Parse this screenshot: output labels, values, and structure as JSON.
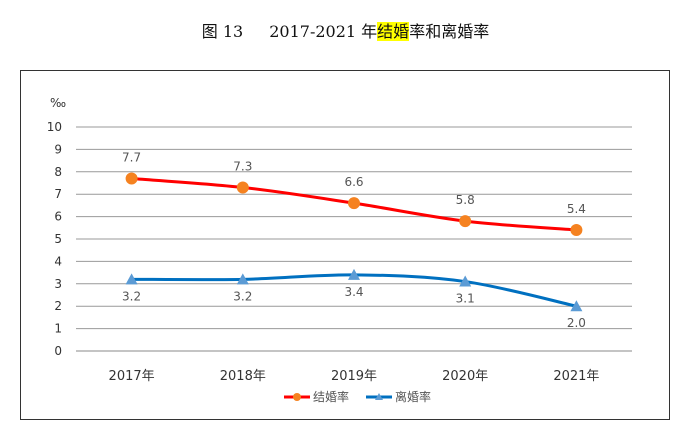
{
  "title": {
    "fig": "图 13",
    "years": "2017-2021 年",
    "highlight": "结婚",
    "rest": "率和离婚率"
  },
  "chart_data": {
    "type": "line",
    "title": "2017-2021 年结婚率和离婚率",
    "ylabel": "‰",
    "categories": [
      "2017年",
      "2018年",
      "2019年",
      "2020年",
      "2021年"
    ],
    "ylim": [
      0,
      10
    ],
    "yticks": [
      0,
      1,
      2,
      3,
      4,
      5,
      6,
      7,
      8,
      9,
      10
    ],
    "grid": true,
    "legend": "bottom",
    "series": [
      {
        "name": "结婚率",
        "values": [
          7.7,
          7.3,
          6.6,
          5.8,
          5.4
        ],
        "labels": [
          "7.7",
          "7.3",
          "6.6",
          "5.8",
          "5.4"
        ],
        "color": "#ff0000",
        "marker_color": "#f58220",
        "marker": "circle"
      },
      {
        "name": "离婚率",
        "values": [
          3.2,
          3.2,
          3.4,
          3.1,
          2.0
        ],
        "labels": [
          "3.2",
          "3.2",
          "3.4",
          "3.1",
          "2.0"
        ],
        "color": "#0070c0",
        "marker_color": "#5b9bd5",
        "marker": "triangle"
      }
    ]
  }
}
